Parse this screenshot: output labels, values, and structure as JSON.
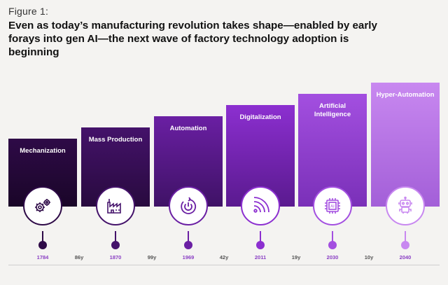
{
  "figure_label": "Figure 1:",
  "headline": "Even as today’s manufacturing revolution takes shape—enabled by early forays into gen AI—the next wave of factory technology adoption is beginning",
  "stages": [
    {
      "label": "Mechanization",
      "year": "1784",
      "icon": "gears-icon",
      "color_top": "#2e0a47",
      "color_bottom": "#1a0628"
    },
    {
      "label": "Mass Production",
      "year": "1870",
      "icon": "factory-icon",
      "color_top": "#44126a",
      "color_bottom": "#280a3e"
    },
    {
      "label": "Automation",
      "year": "1969",
      "icon": "cycle-power-icon",
      "color_top": "#6a1fa3",
      "color_bottom": "#3f1266"
    },
    {
      "label": "Digitalization",
      "year": "2011",
      "icon": "signal-waves-icon",
      "color_top": "#8c2fd0",
      "color_bottom": "#5a1a8f"
    },
    {
      "label": "Artificial Intelligence",
      "year": "2030",
      "icon": "ai-chip-icon",
      "color_top": "#a34fe0",
      "color_bottom": "#7a30b8"
    },
    {
      "label": "Hyper-Automation",
      "year": "2040",
      "icon": "robot-icon",
      "color_top": "#c888f0",
      "color_bottom": "#a35fd8"
    }
  ],
  "gaps": [
    "86y",
    "99y",
    "42y",
    "19y",
    "10y"
  ],
  "colors": {
    "accent": "#8a3fc4",
    "track_dark": "#3a1054",
    "track_light": "#e3c8f5"
  }
}
